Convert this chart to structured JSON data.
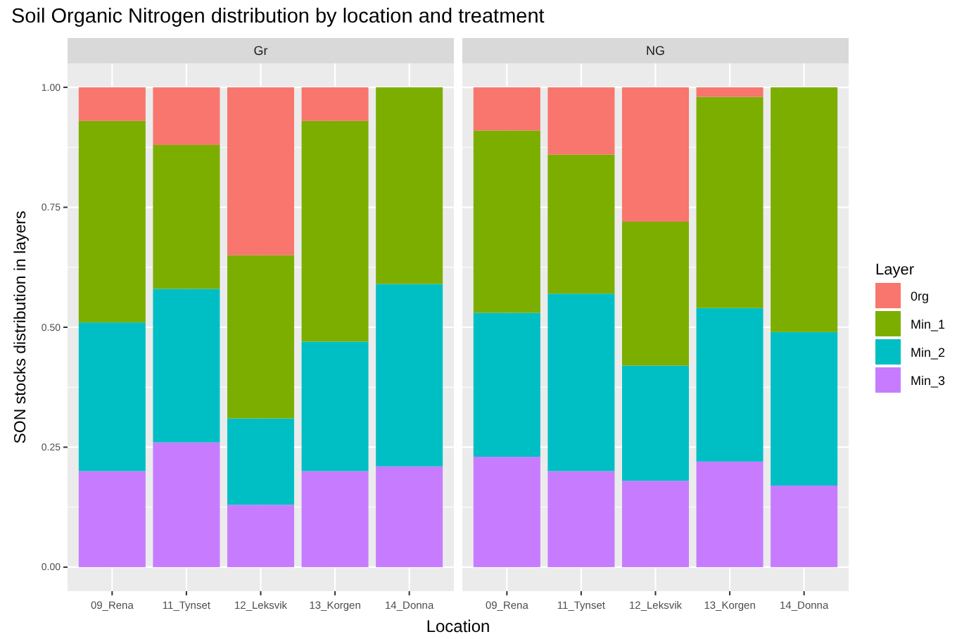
{
  "chart_data": [
    {
      "type": "bar",
      "stacked": true,
      "title": "Soil Organic Nitrogen distribution by location and treatment",
      "subtitle": "Gr",
      "xlabel": "Location",
      "ylabel": "SON stocks distribution in layers",
      "categories": [
        "09_Rena",
        "11_Tynset",
        "12_Leksvik",
        "13_Korgen",
        "14_Donna"
      ],
      "series": [
        {
          "color": "#c77cff",
          "values": [
            0.2,
            0.26,
            0.13,
            0.2,
            0.21
          ]
        },
        {
          "color": "#00bfc4",
          "values": [
            0.31,
            0.32,
            0.18,
            0.27,
            0.38
          ]
        },
        {
          "color": "#7cae00",
          "values": [
            0.42,
            0.3,
            0.34,
            0.46,
            0.41
          ]
        },
        {
          "color": "#f8766d",
          "values": [
            0.07,
            0.12,
            0.35,
            0.07,
            null
          ]
        }
      ],
      "ylim": [
        -0.05,
        1.05
      ],
      "yticks": [
        {
          "value": 0,
          "label": "0.00"
        },
        {
          "value": 0.25,
          "label": "0.25"
        },
        {
          "value": 0.5,
          "label": "0.50"
        },
        {
          "value": 0.75,
          "label": "0.75"
        },
        {
          "value": 1,
          "label": "1.00"
        }
      ],
      "grid": true
    },
    {
      "type": "bar",
      "stacked": true,
      "subtitle": "NG",
      "categories": [
        "09_Rena",
        "11_Tynset",
        "12_Leksvik",
        "13_Korgen",
        "14_Donna"
      ],
      "series": [
        {
          "name": "Min_3",
          "color": "#c77cff",
          "values": [
            0.23,
            0.2,
            0.18,
            0.22,
            0.17
          ]
        },
        {
          "name": "Min_2",
          "color": "#00bfc4",
          "values": [
            0.3,
            0.37,
            0.24,
            0.32,
            0.32
          ]
        },
        {
          "name": "Min_1",
          "color": "#7cae00",
          "values": [
            0.38,
            0.29,
            0.3,
            0.44,
            0.51
          ]
        },
        {
          "name": "0rg",
          "color": "#f8766d",
          "values": [
            0.09,
            0.14,
            0.28,
            0.02,
            null
          ]
        }
      ],
      "ylim": [
        -0.05,
        1.05
      ],
      "yticks": [
        0,
        0.25,
        0.5,
        0.75,
        1
      ],
      "grid": true,
      "tick_labels": "x",
      "legend": "right",
      "legend_title": "Layer"
    }
  ]
}
